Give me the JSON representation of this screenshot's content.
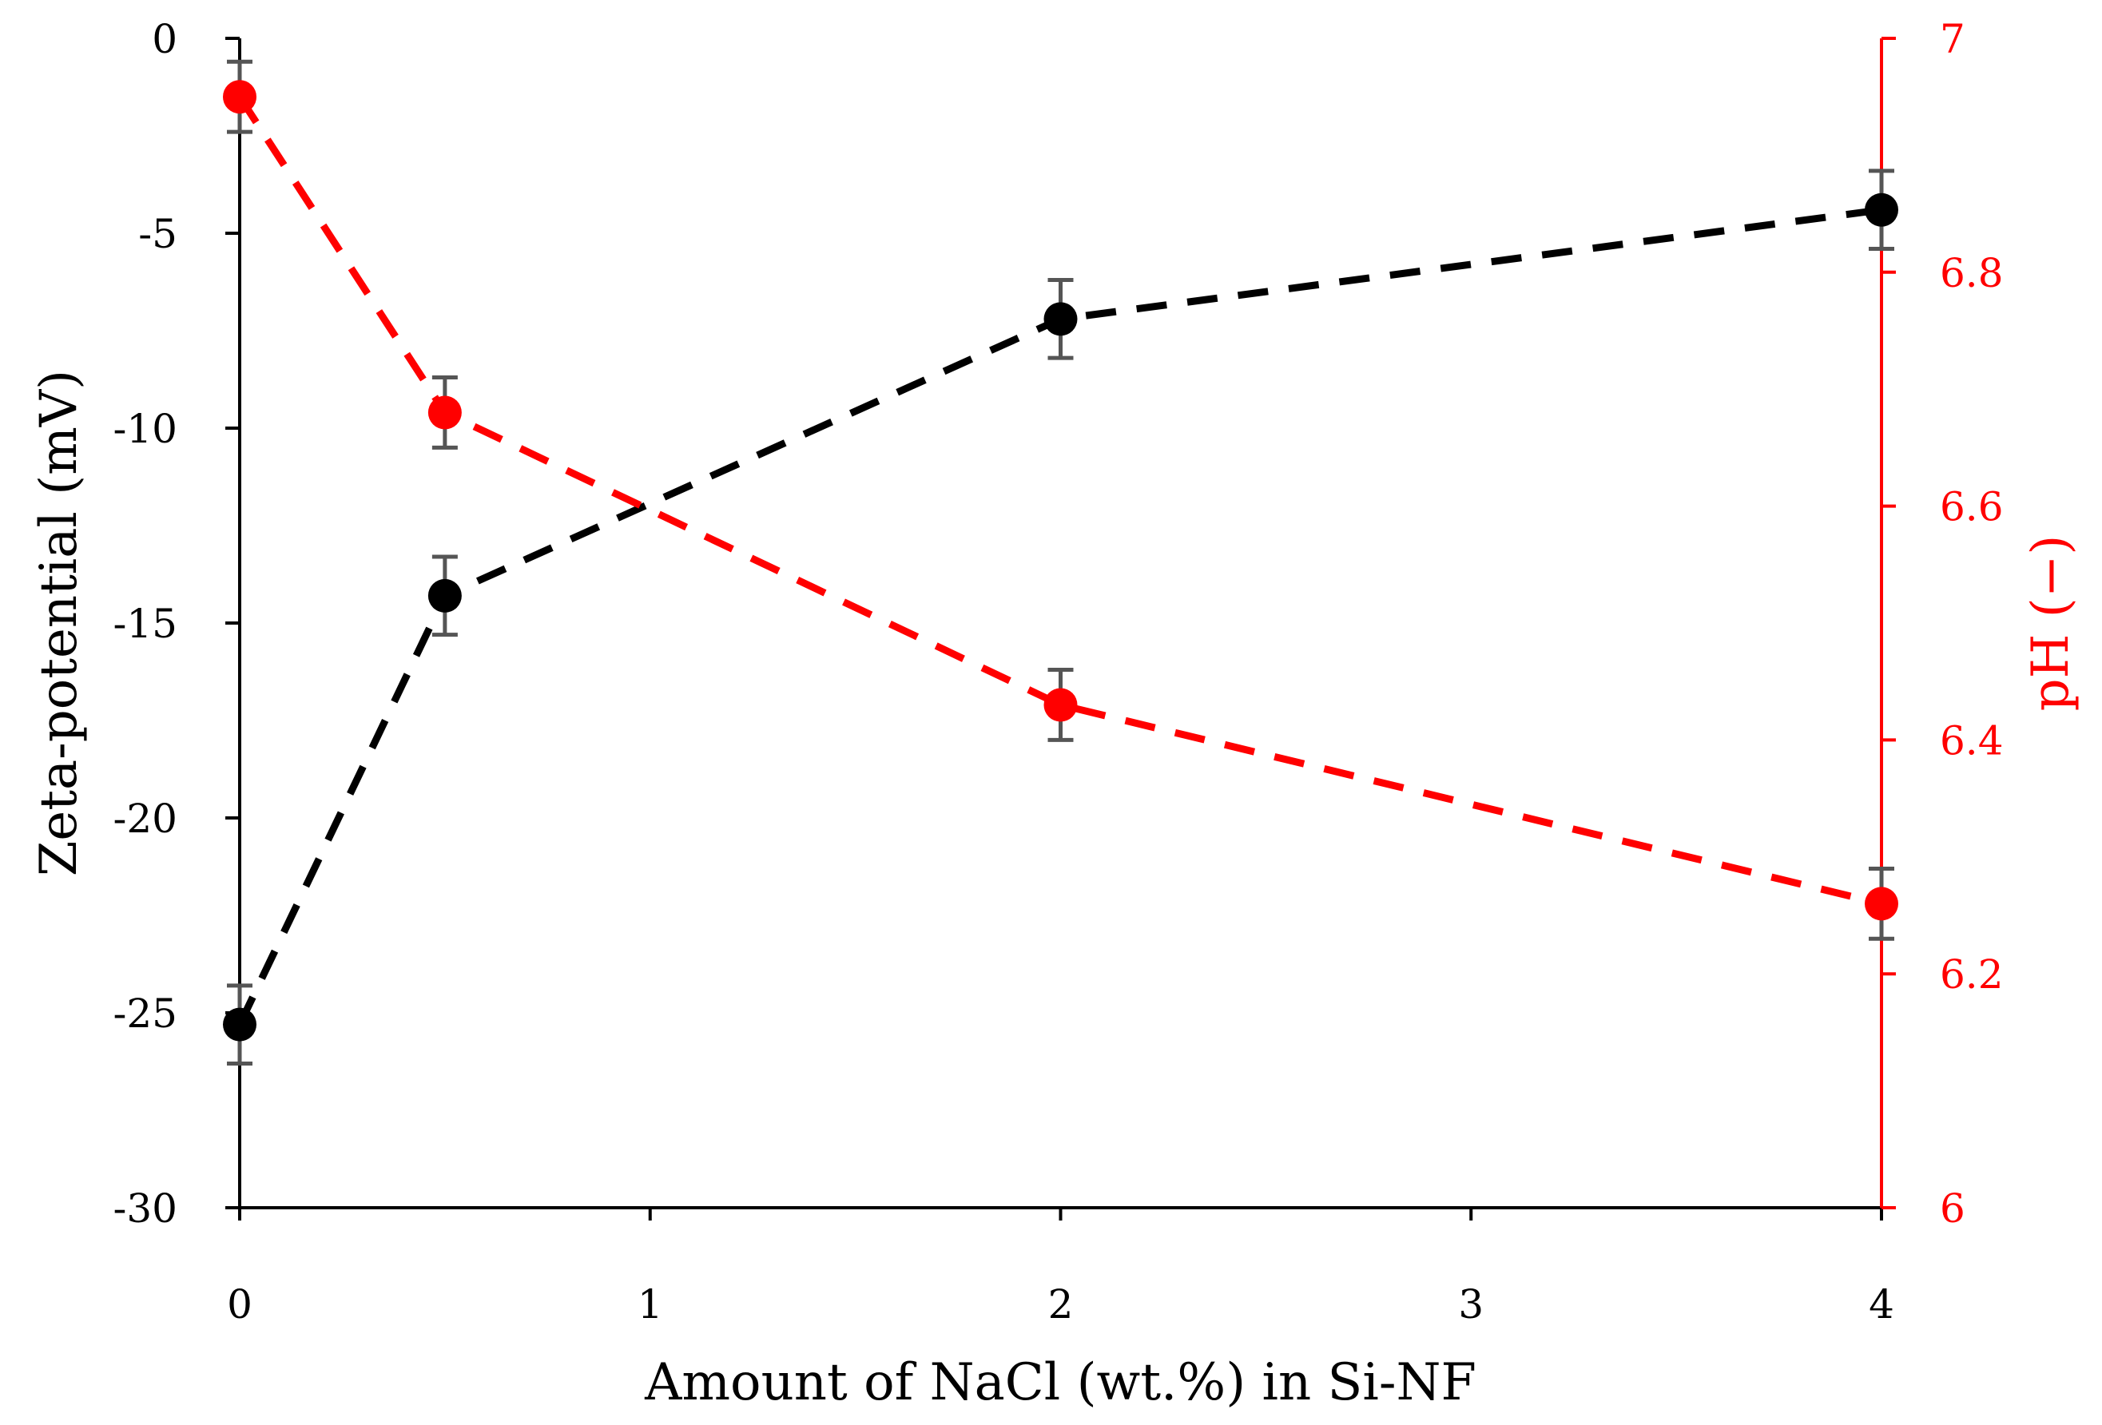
{
  "chart_data": {
    "type": "line",
    "title": "",
    "xlabel": "Amount of NaCl (wt.%) in Si-NF",
    "ylabel_left": "Zeta-potential (mV)",
    "ylabel_right": "pH (−)",
    "xlim": [
      0,
      4
    ],
    "ylim_left": [
      -30,
      0
    ],
    "ylim_right": [
      6,
      7
    ],
    "x_ticks": [
      "0",
      "1",
      "2",
      "3",
      "4"
    ],
    "y_ticks_left": [
      "0",
      "-5",
      "-10",
      "-15",
      "-20",
      "-25",
      "-30"
    ],
    "y_ticks_right": [
      "7",
      "6.8",
      "6.6",
      "6.4",
      "6.2",
      "6"
    ],
    "grid": false,
    "series": [
      {
        "name": "Zeta-potential",
        "axis": "left",
        "color": "#000000",
        "x": [
          0,
          0.5,
          2,
          4
        ],
        "values": [
          -25.3,
          -14.3,
          -7.2,
          -4.4
        ],
        "error": [
          1.0,
          1.0,
          1.0,
          1.0
        ]
      },
      {
        "name": "pH",
        "axis": "right",
        "color": "#ff0000",
        "x": [
          0,
          0.5,
          2,
          4
        ],
        "values": [
          6.95,
          6.68,
          6.43,
          6.26
        ],
        "error": [
          0.03,
          0.03,
          0.03,
          0.03
        ]
      }
    ],
    "colors": {
      "left_axis": "#000000",
      "right_axis": "#ff0000",
      "error_bar": "#555555"
    }
  }
}
